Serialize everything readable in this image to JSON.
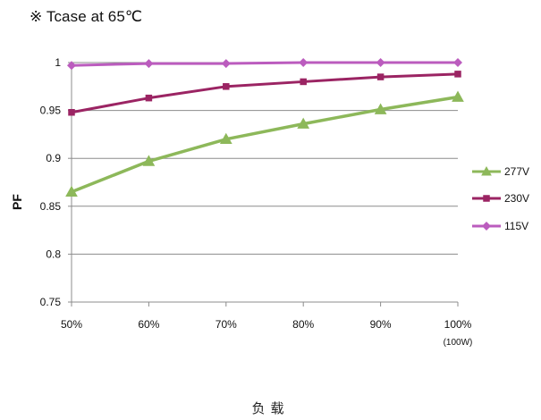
{
  "note": "※ Tcase at 65℃",
  "chart_data": {
    "type": "line",
    "categories": [
      "50%",
      "60%",
      "70%",
      "80%",
      "90%",
      "100%"
    ],
    "category_sublabels": [
      "",
      "",
      "",
      "",
      "",
      "(100W)"
    ],
    "xlabel": "负载",
    "ylabel": "PF",
    "ylim": [
      0.75,
      1
    ],
    "yticks": [
      "0.75",
      "0.8",
      "0.85",
      "0.9",
      "0.95",
      "1"
    ],
    "grid": "horizontal",
    "legend_position": "right",
    "series": [
      {
        "name": "277V",
        "color": "#8DB85A",
        "marker": "triangle",
        "values": [
          0.865,
          0.897,
          0.92,
          0.936,
          0.951,
          0.964
        ]
      },
      {
        "name": "230V",
        "color": "#9B2463",
        "marker": "square",
        "values": [
          0.948,
          0.963,
          0.975,
          0.98,
          0.985,
          0.988
        ]
      },
      {
        "name": "115V",
        "color": "#BB5CBE",
        "marker": "diamond",
        "values": [
          0.997,
          0.999,
          0.999,
          1.0,
          1.0,
          1.0
        ]
      }
    ]
  }
}
